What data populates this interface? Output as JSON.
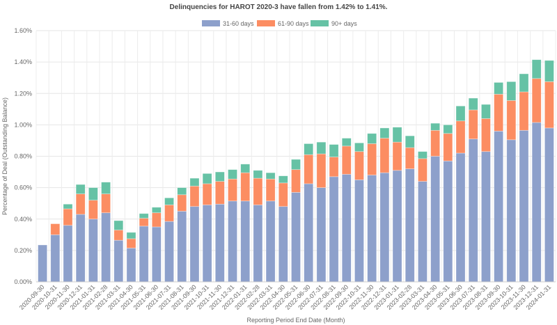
{
  "chart_data": {
    "type": "bar",
    "stacked": true,
    "title": "Delinquencies for HAROT 2020-3 have fallen from 1.42% to 1.41%.",
    "xlabel": "Reporting Period End Date (Month)",
    "ylabel": "Percentage of Deal (Outstanding Balance)",
    "ylim": [
      0,
      1.6
    ],
    "yticks": [
      "0.00%",
      "0.20%",
      "0.40%",
      "0.60%",
      "0.80%",
      "1.00%",
      "1.20%",
      "1.40%",
      "1.60%"
    ],
    "grid": true,
    "legend_position": "top",
    "categories": [
      "2020-09-30",
      "2020-10-31",
      "2020-11-30",
      "2020-12-31",
      "2021-01-31",
      "2021-02-28",
      "2021-03-31",
      "2021-04-30",
      "2021-05-31",
      "2021-06-30",
      "2021-07-31",
      "2021-08-31",
      "2021-09-30",
      "2021-10-31",
      "2021-11-30",
      "2021-12-31",
      "2022-01-31",
      "2022-02-28",
      "2022-03-31",
      "2022-04-30",
      "2022-05-31",
      "2022-06-30",
      "2022-07-31",
      "2022-08-31",
      "2022-09-30",
      "2022-10-31",
      "2022-11-30",
      "2022-12-31",
      "2023-01-31",
      "2023-02-28",
      "2023-03-31",
      "2023-04-30",
      "2023-05-31",
      "2023-06-30",
      "2023-07-31",
      "2023-08-31",
      "2023-09-30",
      "2023-10-31",
      "2023-11-30",
      "2023-12-31",
      "2024-01-31"
    ],
    "series": [
      {
        "name": "31-60 days",
        "color": "#8da0cb",
        "values": [
          0.235,
          0.3,
          0.36,
          0.43,
          0.4,
          0.44,
          0.265,
          0.215,
          0.355,
          0.35,
          0.385,
          0.45,
          0.48,
          0.49,
          0.495,
          0.515,
          0.515,
          0.49,
          0.515,
          0.48,
          0.57,
          0.625,
          0.6,
          0.67,
          0.685,
          0.65,
          0.68,
          0.695,
          0.71,
          0.72,
          0.64,
          0.8,
          0.77,
          0.82,
          0.91,
          0.83,
          0.96,
          0.905,
          0.965,
          1.015,
          0.98
        ]
      },
      {
        "name": "61-90 days",
        "color": "#fc8d62",
        "values": [
          0,
          0.07,
          0.105,
          0.13,
          0.12,
          0.12,
          0.065,
          0.06,
          0.05,
          0.09,
          0.105,
          0.105,
          0.13,
          0.135,
          0.145,
          0.14,
          0.18,
          0.17,
          0.14,
          0.15,
          0.145,
          0.185,
          0.215,
          0.125,
          0.18,
          0.18,
          0.2,
          0.22,
          0.18,
          0.135,
          0.145,
          0.165,
          0.175,
          0.205,
          0.185,
          0.21,
          0.235,
          0.25,
          0.245,
          0.28,
          0.295
        ]
      },
      {
        "name": "90+ days",
        "color": "#66c2a5",
        "values": [
          0,
          0,
          0.03,
          0.06,
          0.08,
          0.075,
          0.06,
          0.04,
          0.03,
          0.035,
          0.045,
          0.045,
          0.05,
          0.065,
          0.06,
          0.06,
          0.055,
          0.05,
          0.04,
          0.045,
          0.065,
          0.07,
          0.075,
          0.08,
          0.05,
          0.055,
          0.065,
          0.065,
          0.095,
          0.075,
          0.045,
          0.045,
          0.055,
          0.095,
          0.075,
          0.09,
          0.075,
          0.12,
          0.115,
          0.12,
          0.135
        ]
      }
    ]
  }
}
